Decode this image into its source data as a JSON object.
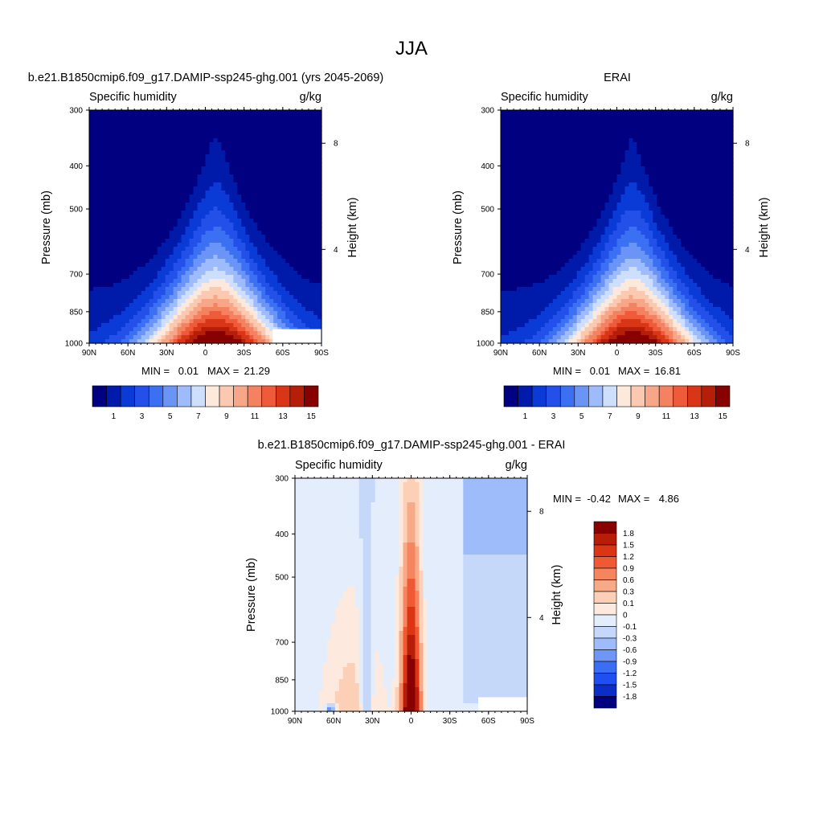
{
  "figure": {
    "season": "JJA"
  },
  "colors": {
    "positive_levels": [
      "#000080",
      "#001aaa",
      "#0a3bd6",
      "#2250e8",
      "#3c70f2",
      "#6a95f7",
      "#9ebcfb",
      "#cddffd",
      "#fde8dc",
      "#fbc9b0",
      "#f7a688",
      "#f48260",
      "#ee5a3a",
      "#d93517",
      "#b51f0a",
      "#880000"
    ],
    "diff_levels": [
      "#000080",
      "#0b2ec9",
      "#1f4ff0",
      "#3a6ef5",
      "#6e96f7",
      "#9ebcf9",
      "#c6d8fa",
      "#e3edfb",
      "#fde9dd",
      "#fbd0b6",
      "#f7aa88",
      "#f4855f",
      "#ef5a34",
      "#db3514",
      "#b71d08",
      "#890000"
    ]
  },
  "chart_data": [
    {
      "type": "contour",
      "title": "b.e21.B1850cmip6.f09_g17.DAMIP-ssp245-ghg.001 (yrs 2045-2069)",
      "left_label": "Specific humidity",
      "right_label": "g/kg",
      "xlabel": "",
      "ylabel": "Pressure (mb)",
      "y2label": "Height (km)",
      "x_ticks": [
        "90N",
        "60N",
        "30N",
        "0",
        "30S",
        "60S",
        "90S"
      ],
      "y_ticks": [
        "300",
        "400",
        "500",
        "700",
        "850",
        "1000"
      ],
      "y2_ticks": [
        "8",
        "4"
      ],
      "stats": {
        "min": "0.01",
        "max": "21.29"
      },
      "levels": [
        "1",
        "3",
        "5",
        "7",
        "9",
        "11",
        "13",
        "15"
      ],
      "peak_lat": -8,
      "mask": true
    },
    {
      "type": "contour",
      "title": "ERAI",
      "left_label": "Specific humidity",
      "right_label": "g/kg",
      "xlabel": "",
      "ylabel": "Pressure (mb)",
      "y2label": "Height (km)",
      "x_ticks": [
        "90N",
        "60N",
        "30N",
        "0",
        "30S",
        "60S",
        "90S"
      ],
      "y_ticks": [
        "300",
        "400",
        "500",
        "700",
        "850",
        "1000"
      ],
      "y2_ticks": [
        "8",
        "4"
      ],
      "stats": {
        "min": "0.01",
        "max": "16.81"
      },
      "levels": [
        "1",
        "3",
        "5",
        "7",
        "9",
        "11",
        "13",
        "15"
      ],
      "peak_lat": -12,
      "mask": false
    },
    {
      "type": "contour",
      "title": "b.e21.B1850cmip6.f09_g17.DAMIP-ssp245-ghg.001 - ERAI",
      "left_label": "Specific humidity",
      "right_label": "g/kg",
      "xlabel": "",
      "ylabel": "Pressure (mb)",
      "y2label": "Height (km)",
      "x_ticks": [
        "90N",
        "60N",
        "30N",
        "0",
        "30S",
        "60S",
        "90S"
      ],
      "y_ticks": [
        "300",
        "400",
        "500",
        "700",
        "850",
        "1000"
      ],
      "y2_ticks": [
        "8",
        "4"
      ],
      "stats": {
        "min": "-0.42",
        "max": "4.86"
      },
      "levels": [
        "1.8",
        "1.5",
        "1.2",
        "0.9",
        "0.6",
        "0.3",
        "0.1",
        "0",
        "-0.1",
        "-0.3",
        "-0.6",
        "-0.9",
        "-1.2",
        "-1.5",
        "-1.8"
      ],
      "peak_lat": 0,
      "mask": true
    }
  ],
  "labels": {
    "min_label": "MIN =",
    "max_label": "MAX ="
  }
}
